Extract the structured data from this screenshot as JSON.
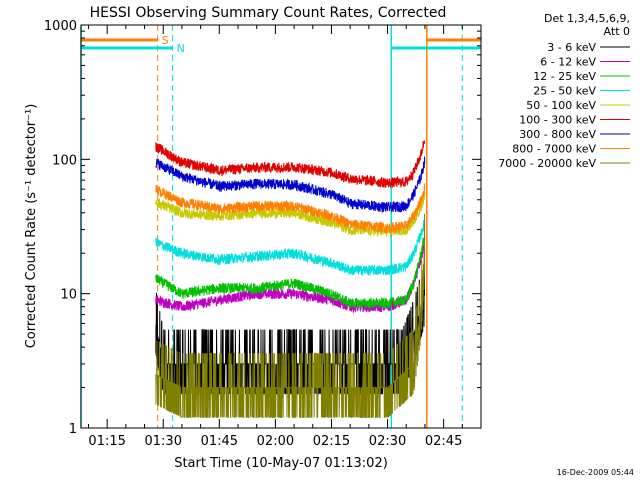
{
  "chart_data": {
    "type": "line",
    "title": "HESSI Observing Summary Count Rates, Corrected",
    "xlabel": "Start Time (10-May-07 01:13:02)",
    "ylabel": "Corrected Count Rate (s⁻¹ detector⁻¹)",
    "y_scale": "log",
    "ylim": [
      1,
      1000
    ],
    "y_ticks": [
      {
        "value": 1,
        "label": "1"
      },
      {
        "value": 10,
        "label": "10"
      },
      {
        "value": 100,
        "label": "100"
      },
      {
        "value": 1000,
        "label": "1000"
      }
    ],
    "xlim_minutes": [
      68,
      175
    ],
    "x_ticks": [
      {
        "value": 75,
        "label": "01:15"
      },
      {
        "value": 90,
        "label": "01:30"
      },
      {
        "value": 105,
        "label": "01:45"
      },
      {
        "value": 120,
        "label": "02:00"
      },
      {
        "value": 135,
        "label": "02:15"
      },
      {
        "value": 150,
        "label": "02:30"
      },
      {
        "value": 165,
        "label": "02:45"
      }
    ],
    "legend_header": [
      "Det 1,3,4,5,6,9,",
      "Att 0"
    ],
    "legend_position": "outside-right",
    "series": [
      {
        "name": "3 - 6 keV",
        "color": "#000000",
        "x": [
          88,
          90,
          95,
          110,
          130,
          145,
          154,
          157,
          160
        ],
        "y": [
          6,
          3,
          3,
          3,
          3,
          3,
          3,
          5,
          10
        ]
      },
      {
        "name": "6 - 12 keV",
        "color": "#c000c0",
        "x": [
          88,
          95,
          105,
          115,
          125,
          135,
          140,
          150,
          155,
          157,
          159,
          160
        ],
        "y": [
          9,
          8,
          9,
          10,
          10,
          9,
          8,
          8,
          9,
          12,
          18,
          25
        ]
      },
      {
        "name": "12 - 25 keV",
        "color": "#00c000",
        "x": [
          88,
          95,
          105,
          115,
          125,
          135,
          140,
          150,
          155,
          157,
          159,
          160
        ],
        "y": [
          13,
          10,
          11,
          11,
          12,
          10,
          8.5,
          8.5,
          9,
          12,
          20,
          28
        ]
      },
      {
        "name": "25 - 50 keV",
        "color": "#00dede",
        "x": [
          88,
          95,
          105,
          115,
          125,
          135,
          140,
          150,
          155,
          157,
          159,
          160
        ],
        "y": [
          24,
          20,
          18,
          19,
          20,
          17,
          15,
          15,
          16,
          20,
          28,
          35
        ]
      },
      {
        "name": "50 - 100 keV",
        "color": "#c8c800",
        "x": [
          88,
          95,
          105,
          115,
          125,
          135,
          140,
          150,
          155,
          157,
          159,
          160
        ],
        "y": [
          48,
          40,
          38,
          40,
          40,
          34,
          30,
          29,
          30,
          35,
          45,
          55
        ]
      },
      {
        "name": "100 - 300 keV",
        "color": "#e00000",
        "x": [
          88,
          95,
          105,
          115,
          125,
          135,
          140,
          150,
          155,
          157,
          159,
          160
        ],
        "y": [
          125,
          95,
          83,
          87,
          88,
          80,
          72,
          67,
          68,
          80,
          110,
          145
        ]
      },
      {
        "name": "300 - 800 keV",
        "color": "#0000d0",
        "x": [
          88,
          95,
          105,
          115,
          125,
          135,
          140,
          150,
          155,
          157,
          159,
          160
        ],
        "y": [
          95,
          75,
          63,
          66,
          65,
          55,
          47,
          44,
          45,
          55,
          75,
          100
        ]
      },
      {
        "name": "800 - 7000 keV",
        "color": "#ff8000",
        "x": [
          88,
          95,
          105,
          115,
          125,
          135,
          140,
          150,
          155,
          157,
          159,
          160
        ],
        "y": [
          60,
          48,
          43,
          45,
          45,
          38,
          33,
          31,
          32,
          38,
          50,
          62
        ]
      },
      {
        "name": "7000 - 20000 keV",
        "color": "#808000",
        "x": [
          88,
          95,
          110,
          130,
          150,
          157,
          159,
          160
        ],
        "y": [
          2.5,
          2,
          2,
          2,
          2,
          3,
          8,
          25
        ]
      }
    ],
    "annotations": [
      {
        "label": "S",
        "color": "#ff8000"
      },
      {
        "label": "N",
        "color": "#00dede"
      }
    ],
    "footer_date": "16-Dec-2009 05:44"
  }
}
